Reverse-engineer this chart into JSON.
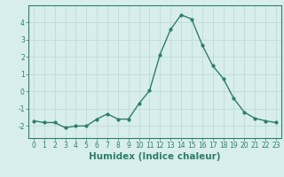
{
  "x": [
    0,
    1,
    2,
    3,
    4,
    5,
    6,
    7,
    8,
    9,
    10,
    11,
    12,
    13,
    14,
    15,
    16,
    17,
    18,
    19,
    20,
    21,
    22,
    23
  ],
  "y": [
    -1.7,
    -1.8,
    -1.8,
    -2.1,
    -2.0,
    -2.0,
    -1.6,
    -1.3,
    -1.6,
    -1.6,
    -0.7,
    0.05,
    2.15,
    3.6,
    4.45,
    4.2,
    2.7,
    1.5,
    0.75,
    -0.4,
    -1.2,
    -1.55,
    -1.7,
    -1.8
  ],
  "line_color": "#2d7d6e",
  "marker": "o",
  "markersize": 2.0,
  "linewidth": 1.0,
  "bg_color": "#d8eeec",
  "grid_color": "#b8d8d4",
  "xlabel": "Humidex (Indice chaleur)",
  "xlim": [
    -0.5,
    23.5
  ],
  "ylim": [
    -2.7,
    5.0
  ],
  "yticks": [
    -2,
    -1,
    0,
    1,
    2,
    3,
    4
  ],
  "xticks": [
    0,
    1,
    2,
    3,
    4,
    5,
    6,
    7,
    8,
    9,
    10,
    11,
    12,
    13,
    14,
    15,
    16,
    17,
    18,
    19,
    20,
    21,
    22,
    23
  ],
  "tick_fontsize": 5.5,
  "xlabel_fontsize": 7.5
}
